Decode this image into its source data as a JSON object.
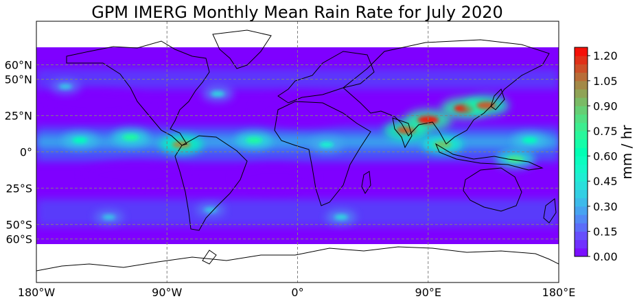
{
  "title": "GPM IMERG Monthly Mean Rain Rate for July 2020",
  "map": {
    "projection": "PlateCarree",
    "lon_range": [
      -180,
      180
    ],
    "lat_range": [
      -90,
      90
    ],
    "data_lat_range": [
      -60,
      70
    ],
    "gridlines": true,
    "grid_style": "dashed gray",
    "x_ticks": [
      {
        "lon": -180,
        "label": "180°W"
      },
      {
        "lon": -90,
        "label": "90°W"
      },
      {
        "lon": 0,
        "label": "0°"
      },
      {
        "lon": 90,
        "label": "90°E"
      },
      {
        "lon": 180,
        "label": "180°E"
      }
    ],
    "y_ticks": [
      {
        "lat": 60,
        "label": "60°N"
      },
      {
        "lat": 50,
        "label": "50°N"
      },
      {
        "lat": 25,
        "label": "25°N"
      },
      {
        "lat": 0,
        "label": "0°"
      },
      {
        "lat": -25,
        "label": "25°S"
      },
      {
        "lat": -50,
        "label": "50°S"
      },
      {
        "lat": -60,
        "label": "60°S"
      }
    ],
    "rain_features": [
      {
        "lon": -30,
        "lat": 8,
        "rate": 0.7
      },
      {
        "lon": -80,
        "lat": 5,
        "rate": 1.0
      },
      {
        "lon": -150,
        "lat": 8,
        "rate": 0.6
      },
      {
        "lon": -115,
        "lat": 10,
        "rate": 0.7
      },
      {
        "lon": 75,
        "lat": 15,
        "rate": 1.1
      },
      {
        "lon": 90,
        "lat": 22,
        "rate": 1.2
      },
      {
        "lon": 115,
        "lat": 30,
        "rate": 1.2
      },
      {
        "lon": 130,
        "lat": 32,
        "rate": 1.1
      },
      {
        "lon": 100,
        "lat": 5,
        "rate": 0.9
      },
      {
        "lon": 150,
        "lat": -5,
        "rate": 0.8
      },
      {
        "lon": 160,
        "lat": 8,
        "rate": 0.6
      },
      {
        "lon": 20,
        "lat": 5,
        "rate": 0.5
      },
      {
        "lon": -55,
        "lat": 40,
        "rate": 0.4
      },
      {
        "lon": -160,
        "lat": 45,
        "rate": 0.35
      },
      {
        "lon": -60,
        "lat": -40,
        "rate": 0.35
      },
      {
        "lon": 30,
        "lat": -45,
        "rate": 0.4
      },
      {
        "lon": -130,
        "lat": -45,
        "rate": 0.35
      }
    ]
  },
  "colorbar": {
    "label": "mm / hr",
    "range": [
      0,
      1.25
    ],
    "colormap": "rainbow",
    "color_low": "#7f00ff",
    "color_high": "#ff0000",
    "ticks": [
      "0.00",
      "0.15",
      "0.30",
      "0.45",
      "0.60",
      "0.75",
      "0.90",
      "1.05",
      "1.20"
    ],
    "tick_values": [
      0.0,
      0.15,
      0.3,
      0.45,
      0.6,
      0.75,
      0.9,
      1.05,
      1.2
    ]
  }
}
